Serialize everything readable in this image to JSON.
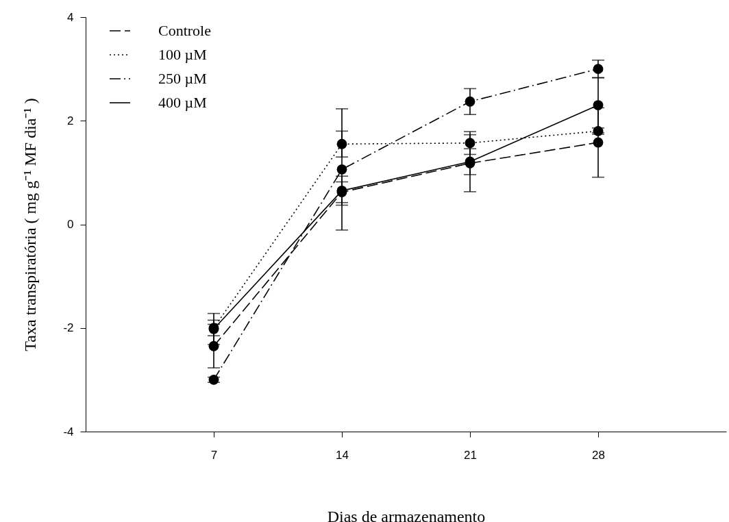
{
  "chart_data": {
    "type": "line",
    "xlabel": "Dias de armazenamento",
    "ylabel": "Taxa transpiratória ( mg g⁻¹ MF dia⁻¹ )",
    "x": [
      7,
      14,
      21,
      28
    ],
    "xlim": [
      0,
      35
    ],
    "xticks": [
      7,
      14,
      21,
      28
    ],
    "ylim": [
      -4,
      4
    ],
    "yticks": [
      -4,
      -2,
      0,
      2,
      4
    ],
    "grid": false,
    "legend": "top left",
    "marker": "circle",
    "series": [
      {
        "name": "Controle",
        "color": "#000000",
        "line_style": "dashed",
        "values": [
          -2.35,
          0.62,
          1.18,
          1.58
        ],
        "errors": [
          0.42,
          0.2,
          0.55,
          0.67
        ]
      },
      {
        "name": "100 µM",
        "color": "#000000",
        "line_style": "dotted",
        "values": [
          -2.0,
          1.55,
          1.57,
          1.8
        ],
        "errors": [
          0.15,
          0.25,
          0.22,
          0.06
        ]
      },
      {
        "name": "250 µM",
        "color": "#000000",
        "line_style": "dashdot",
        "values": [
          -3.0,
          1.06,
          2.37,
          3.0
        ],
        "errors": [
          0.05,
          1.17,
          0.25,
          0.17
        ]
      },
      {
        "name": "400 µM",
        "color": "#000000",
        "line_style": "solid",
        "values": [
          -2.02,
          0.65,
          1.21,
          2.3
        ],
        "errors": [
          0.3,
          0.28,
          0.25,
          0.53
        ]
      }
    ]
  }
}
